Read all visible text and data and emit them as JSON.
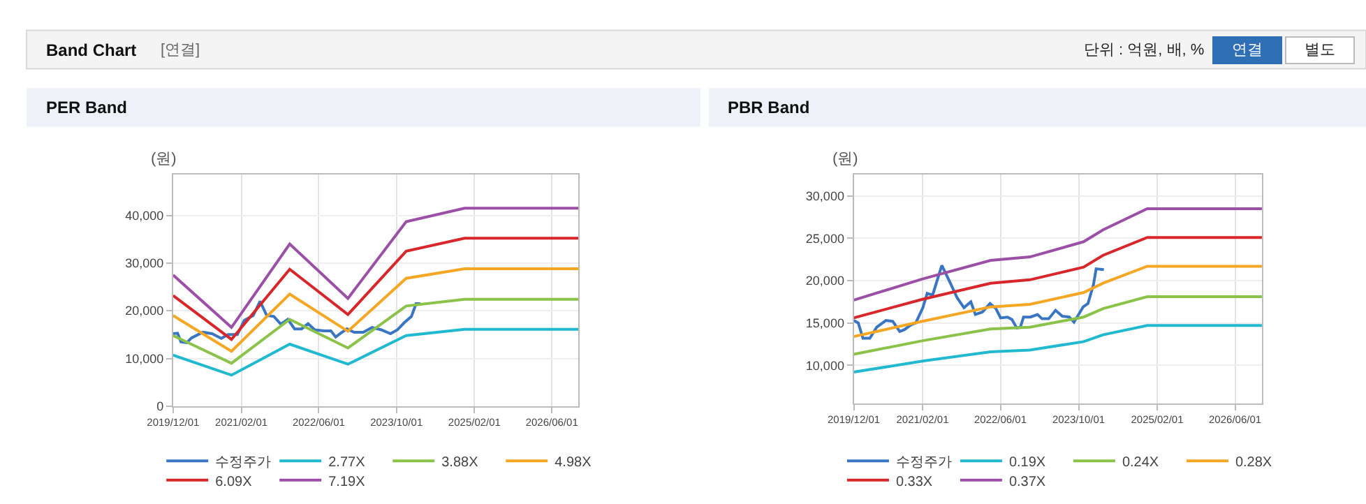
{
  "chart_data": [
    {
      "type": "other",
      "title": "Band Chart",
      "annotations": [
        "[연결]",
        "단위 : 억원, 배, %",
        "연결",
        "별도"
      ]
    },
    {
      "type": "line",
      "title": "PER Band",
      "ylabel": "(원)",
      "grid": true,
      "legend": "bottom",
      "marker": "none",
      "line_style": "solid",
      "xlim": [
        "2019-12-01",
        "2026-11-15"
      ],
      "ylim": [
        0,
        48500
      ],
      "xticks": [
        {
          "value": "2019-12-01",
          "label": "2019/12/01"
        },
        {
          "value": "2021-02-01",
          "label": "2021/02/01"
        },
        {
          "value": "2022-06-01",
          "label": "2022/06/01"
        },
        {
          "value": "2023-10-01",
          "label": "2023/10/01"
        },
        {
          "value": "2025-02-01",
          "label": "2025/02/01"
        },
        {
          "value": "2026-06-01",
          "label": "2026/06/01"
        }
      ],
      "yticks": [
        0,
        {
          "value": 10000,
          "label": "10,000"
        },
        {
          "value": 20000,
          "label": "20,000"
        },
        {
          "value": 30000,
          "label": "30,000"
        },
        {
          "value": 40000,
          "label": "40,000"
        }
      ],
      "series": [
        {
          "name": "수정주가",
          "color": "#3a75c4",
          "x": [
            "2019-12-01",
            "2019-12-29",
            "2020-01-19",
            "2020-02-25",
            "2020-03-25",
            "2020-06-04",
            "2020-08-01",
            "2020-09-28",
            "2020-11-10",
            "2021-01-07",
            "2021-02-19",
            "2021-04-16",
            "2021-05-29",
            "2021-07-10",
            "2021-08-24",
            "2021-10-06",
            "2021-11-19",
            "2022-01-01",
            "2022-02-13",
            "2022-03-26",
            "2022-05-07",
            "2022-07-04",
            "2022-08-16",
            "2022-09-15",
            "2022-10-13",
            "2022-11-25",
            "2023-01-09",
            "2023-03-07",
            "2023-05-01",
            "2023-06-28",
            "2023-08-25",
            "2023-10-07",
            "2023-11-19",
            "2024-01-03",
            "2024-02-01",
            "2024-02-28"
          ],
          "values": [
            15200,
            15300,
            13500,
            13300,
            14300,
            15500,
            15200,
            14200,
            15000,
            15000,
            18000,
            19000,
            22000,
            19000,
            18800,
            17200,
            18200,
            16200,
            16200,
            17300,
            16000,
            15800,
            15800,
            14500,
            15200,
            16200,
            15500,
            15500,
            16500,
            16000,
            15200,
            16000,
            17500,
            18800,
            21500,
            21500
          ]
        },
        {
          "name": "2.77X",
          "color": "#21b9d0",
          "x": [
            "2019-12-01",
            "2020-12-01",
            "2021-12-01",
            "2022-12-01",
            "2023-12-01",
            "2024-12-01",
            "2026-11-15"
          ],
          "values": [
            10700,
            6500,
            13000,
            8800,
            14800,
            16100,
            16100
          ]
        },
        {
          "name": "3.88X",
          "color": "#8bc34a",
          "x": [
            "2019-12-01",
            "2020-12-01",
            "2021-12-01",
            "2022-12-01",
            "2023-12-01",
            "2024-12-01",
            "2026-11-15"
          ],
          "values": [
            14800,
            9000,
            18200,
            12200,
            21000,
            22400,
            22400
          ]
        },
        {
          "name": "4.98X",
          "color": "#f5a623",
          "x": [
            "2019-12-01",
            "2020-12-01",
            "2021-12-01",
            "2022-12-01",
            "2023-12-01",
            "2024-12-01",
            "2026-11-15"
          ],
          "values": [
            19000,
            11500,
            23500,
            15700,
            26800,
            28800,
            28800
          ]
        },
        {
          "name": "6.09X",
          "color": "#d8262a",
          "x": [
            "2019-12-01",
            "2020-12-01",
            "2021-12-01",
            "2022-12-01",
            "2023-12-01",
            "2024-12-01",
            "2026-11-15"
          ],
          "values": [
            23200,
            14000,
            28700,
            19200,
            32500,
            35200,
            35200
          ]
        },
        {
          "name": "7.19X",
          "color": "#9b4fa6",
          "x": [
            "2019-12-01",
            "2020-12-01",
            "2021-12-01",
            "2022-12-01",
            "2023-12-01",
            "2024-12-01",
            "2026-11-15"
          ],
          "values": [
            27500,
            16500,
            34000,
            22600,
            38700,
            41500,
            41500
          ]
        }
      ]
    },
    {
      "type": "line",
      "title": "PBR Band",
      "ylabel": "(원)",
      "grid": true,
      "legend": "bottom",
      "marker": "none",
      "line_style": "solid",
      "xlim": [
        "2019-12-01",
        "2026-11-15"
      ],
      "ylim": [
        5500,
        32500
      ],
      "xticks": [
        {
          "value": "2019-12-01",
          "label": "2019/12/01"
        },
        {
          "value": "2021-02-01",
          "label": "2021/02/01"
        },
        {
          "value": "2022-06-01",
          "label": "2022/06/01"
        },
        {
          "value": "2023-10-01",
          "label": "2023/10/01"
        },
        {
          "value": "2025-02-01",
          "label": "2025/02/01"
        },
        {
          "value": "2026-06-01",
          "label": "2026/06/01"
        }
      ],
      "yticks": [
        {
          "value": 10000,
          "label": "10,000"
        },
        {
          "value": 15000,
          "label": "15,000"
        },
        {
          "value": 20000,
          "label": "20,000"
        },
        {
          "value": 25000,
          "label": "25,000"
        },
        {
          "value": 30000,
          "label": "30,000"
        }
      ],
      "series": [
        {
          "name": "수정주가",
          "color": "#3a75c4",
          "x": [
            "2019-12-01",
            "2019-12-29",
            "2020-01-27",
            "2020-03-10",
            "2020-04-22",
            "2020-06-18",
            "2020-07-31",
            "2020-09-12",
            "2020-10-10",
            "2020-11-23",
            "2020-12-21",
            "2021-02-03",
            "2021-03-02",
            "2021-04-05",
            "2021-06-01",
            "2021-07-22",
            "2021-09-04",
            "2021-10-17",
            "2021-11-29",
            "2021-12-27",
            "2022-02-09",
            "2022-03-28",
            "2022-05-04",
            "2022-06-02",
            "2022-07-15",
            "2022-08-12",
            "2022-09-11",
            "2022-10-03",
            "2022-10-23",
            "2022-12-05",
            "2023-01-18",
            "2023-02-15",
            "2023-03-29",
            "2023-05-10",
            "2023-06-22",
            "2023-08-04",
            "2023-09-02",
            "2023-10-01",
            "2023-10-29",
            "2023-11-28",
            "2024-01-01",
            "2024-01-18",
            "2024-03-06"
          ],
          "values": [
            15300,
            15000,
            13200,
            13200,
            14500,
            15300,
            15200,
            14000,
            14200,
            14800,
            15000,
            16800,
            18500,
            18300,
            21800,
            19800,
            18000,
            16800,
            17500,
            16000,
            16300,
            17300,
            16700,
            15600,
            15700,
            15400,
            14400,
            14500,
            15700,
            15700,
            16000,
            15500,
            15500,
            16500,
            15800,
            15700,
            15100,
            16000,
            16900,
            17300,
            19500,
            21400,
            21300
          ]
        },
        {
          "name": "0.19X",
          "color": "#21b9d0",
          "x": [
            "2019-12-01",
            "2021-02-01",
            "2022-04-01",
            "2022-12-01",
            "2023-11-01",
            "2024-03-01",
            "2024-12-01",
            "2026-11-15"
          ],
          "values": [
            9200,
            10500,
            11600,
            11800,
            12800,
            13600,
            14700,
            14700
          ]
        },
        {
          "name": "0.24X",
          "color": "#8bc34a",
          "x": [
            "2019-12-01",
            "2021-02-01",
            "2022-04-01",
            "2022-12-01",
            "2023-11-01",
            "2024-03-01",
            "2024-12-01",
            "2026-11-15"
          ],
          "values": [
            11300,
            12900,
            14300,
            14500,
            15700,
            16700,
            18100,
            18100
          ]
        },
        {
          "name": "0.28X",
          "color": "#f5a623",
          "x": [
            "2019-12-01",
            "2021-02-01",
            "2022-04-01",
            "2022-12-01",
            "2023-11-01",
            "2024-03-01",
            "2024-12-01",
            "2026-11-15"
          ],
          "values": [
            13400,
            15200,
            16900,
            17200,
            18600,
            19700,
            21700,
            21700
          ]
        },
        {
          "name": "0.33X",
          "color": "#d8262a",
          "x": [
            "2019-12-01",
            "2021-02-01",
            "2022-04-01",
            "2022-12-01",
            "2023-11-01",
            "2024-03-01",
            "2024-12-01",
            "2026-11-15"
          ],
          "values": [
            15600,
            17800,
            19700,
            20100,
            21600,
            23000,
            25100,
            25100
          ]
        },
        {
          "name": "0.37X",
          "color": "#9b4fa6",
          "x": [
            "2019-12-01",
            "2021-02-01",
            "2022-04-01",
            "2022-12-01",
            "2023-11-01",
            "2024-03-01",
            "2024-12-01",
            "2026-11-15"
          ],
          "values": [
            17700,
            20200,
            22400,
            22800,
            24600,
            26000,
            28500,
            28500
          ]
        }
      ]
    }
  ]
}
